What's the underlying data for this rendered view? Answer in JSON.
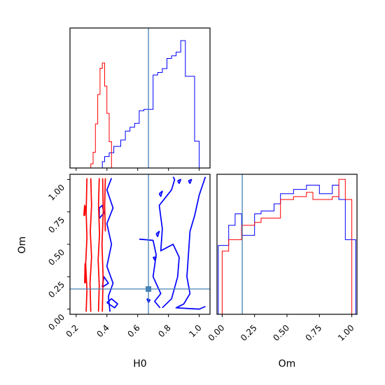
{
  "chart_data": {
    "type": "corner",
    "parameters": [
      "H0",
      "Om"
    ],
    "x_axis_label": "H0",
    "y_axis_label": "Om",
    "om_axis_label": "Om",
    "h0_ticks": [
      {
        "value": 0.2,
        "label": "0.2"
      },
      {
        "value": 0.4,
        "label": "0.4"
      },
      {
        "value": 0.6,
        "label": "0.6"
      },
      {
        "value": 0.8,
        "label": "0.8"
      },
      {
        "value": 1.0,
        "label": "1.0"
      }
    ],
    "om_ticks": [
      {
        "value": 0.0,
        "label": "0.00"
      },
      {
        "value": 0.25,
        "label": "0.25"
      },
      {
        "value": 0.5,
        "label": "0.50"
      },
      {
        "value": 0.75,
        "label": "0.75"
      },
      {
        "value": 1.0,
        "label": "1.00"
      }
    ],
    "h0_range": [
      0.16,
      1.07
    ],
    "om_range": [
      -0.04,
      1.04
    ],
    "truth": {
      "H0": 0.67,
      "Om": 0.155
    },
    "colors": {
      "series_a": "#ff0000",
      "series_b": "#0000ff",
      "truth": "#4682b4",
      "axes": "#000000"
    },
    "h0_histograms": {
      "bin_edges": [
        0.16,
        0.175,
        0.19,
        0.205,
        0.22,
        0.235,
        0.25,
        0.265,
        0.28,
        0.295,
        0.31,
        0.325,
        0.34,
        0.355,
        0.37,
        0.385,
        0.4,
        0.415,
        0.43,
        0.445,
        0.46,
        0.475,
        0.49,
        0.505,
        0.52,
        0.535,
        0.55,
        0.565,
        0.58,
        0.595,
        0.61,
        0.625,
        0.64,
        0.655,
        0.67,
        0.685,
        0.7,
        0.715,
        0.73,
        0.745,
        0.76,
        0.775,
        0.79,
        0.805,
        0.82,
        0.835,
        0.85,
        0.865,
        0.88,
        0.895,
        0.91,
        0.925,
        0.94,
        0.955,
        0.97,
        0.985,
        1.0,
        1.015,
        1.03,
        1.045,
        1.06
      ],
      "red": [
        0,
        0,
        0,
        0,
        0,
        0,
        0,
        0,
        0,
        0.04,
        0.15,
        0.42,
        0.7,
        0.95,
        1.0,
        0.78,
        0.52,
        0.25,
        0,
        0,
        0,
        0,
        0,
        0,
        0,
        0,
        0,
        0,
        0,
        0,
        0,
        0,
        0,
        0,
        0,
        0,
        0,
        0,
        0,
        0,
        0,
        0,
        0,
        0,
        0,
        0,
        0,
        0,
        0,
        0,
        0,
        0,
        0,
        0,
        0,
        0,
        0,
        0,
        0,
        0
      ],
      "blue": [
        0,
        0,
        0,
        0,
        0,
        0,
        0,
        0,
        0,
        0,
        0,
        0,
        0,
        0,
        0.05,
        0.09,
        0.09,
        0.12,
        0.12,
        0.17,
        0.17,
        0.17,
        0.22,
        0.22,
        0.29,
        0.29,
        0.32,
        0.32,
        0.35,
        0.35,
        0.45,
        0.45,
        0.46,
        0.46,
        0.46,
        0.46,
        0.73,
        0.73,
        0.75,
        0.75,
        0.78,
        0.78,
        0.86,
        0.86,
        0.88,
        0.88,
        0.91,
        0.91,
        1.0,
        1.0,
        0.72,
        0.72,
        0.72,
        0.72,
        0.21,
        0.21,
        0,
        0,
        0,
        0
      ]
    },
    "om_histograms": {
      "bin_edges": [
        -0.03,
        0.0,
        0.05,
        0.1,
        0.15,
        0.2,
        0.25,
        0.3,
        0.35,
        0.4,
        0.45,
        0.5,
        0.55,
        0.6,
        0.65,
        0.7,
        0.75,
        0.8,
        0.85,
        0.9,
        0.95,
        1.0,
        1.03
      ],
      "red": [
        0.0,
        0.44,
        0.52,
        0.52,
        0.62,
        0.62,
        0.64,
        0.67,
        0.67,
        0.67,
        0.8,
        0.8,
        0.82,
        0.82,
        0.85,
        0.8,
        0.8,
        0.8,
        0.82,
        0.94,
        0.8,
        0.0
      ],
      "blue": [
        0.48,
        0.48,
        0.62,
        0.7,
        0.55,
        0.55,
        0.7,
        0.72,
        0.72,
        0.77,
        0.84,
        0.84,
        0.87,
        0.87,
        0.9,
        0.9,
        0.84,
        0.84,
        0.9,
        0.8,
        0.52,
        0.52
      ]
    },
    "contours": {
      "red": [
        [
          [
            0.265,
            -0.02
          ],
          [
            0.27,
            0.15
          ],
          [
            0.262,
            0.35
          ],
          [
            0.27,
            0.55
          ],
          [
            0.265,
            0.75
          ],
          [
            0.27,
            1.01
          ]
        ],
        [
          [
            0.295,
            -0.02
          ],
          [
            0.29,
            0.2
          ],
          [
            0.3,
            0.4
          ],
          [
            0.292,
            0.6
          ],
          [
            0.3,
            0.8
          ],
          [
            0.295,
            1.01
          ]
        ],
        [
          [
            0.345,
            -0.02
          ],
          [
            0.35,
            0.18
          ],
          [
            0.343,
            0.38
          ],
          [
            0.352,
            0.58
          ],
          [
            0.345,
            0.8
          ],
          [
            0.35,
            1.01
          ]
        ],
        [
          [
            0.37,
            -0.02
          ],
          [
            0.375,
            0.25
          ],
          [
            0.368,
            0.5
          ],
          [
            0.376,
            0.75
          ],
          [
            0.372,
            1.01
          ]
        ],
        [
          [
            0.39,
            0.6
          ],
          [
            0.385,
            0.8
          ],
          [
            0.39,
            1.01
          ]
        ],
        [
          [
            0.25,
            0.72
          ],
          [
            0.255,
            0.8
          ],
          [
            0.26,
            0.78
          ],
          [
            0.255,
            0.72
          ]
        ],
        [
          [
            0.255,
            0.2
          ],
          [
            0.258,
            0.35
          ],
          [
            0.262,
            0.3
          ],
          [
            0.26,
            0.2
          ]
        ]
      ],
      "blue": [
        [
          [
            0.42,
            -0.02
          ],
          [
            0.41,
            0.1
          ],
          [
            0.44,
            0.2
          ],
          [
            0.4,
            0.33
          ],
          [
            0.43,
            0.5
          ],
          [
            0.4,
            0.66
          ],
          [
            0.44,
            0.78
          ],
          [
            0.4,
            0.92
          ],
          [
            0.43,
            1.01
          ]
        ],
        [
          [
            0.4,
            0.05
          ],
          [
            0.43,
            0.08
          ],
          [
            0.47,
            0.04
          ],
          [
            0.45,
            0.01
          ],
          [
            0.4,
            0.05
          ]
        ],
        [
          [
            0.37,
            0.17
          ],
          [
            0.41,
            0.2
          ],
          [
            0.38,
            0.25
          ],
          [
            0.37,
            0.17
          ]
        ],
        [
          [
            0.35,
            0.7
          ],
          [
            0.38,
            0.74
          ],
          [
            0.37,
            0.8
          ],
          [
            0.35,
            0.78
          ],
          [
            0.35,
            0.7
          ]
        ],
        [
          [
            0.61,
            0.54
          ],
          [
            0.7,
            0.53
          ],
          [
            0.72,
            0.42
          ],
          [
            0.7,
            0.25
          ],
          [
            0.75,
            0.12
          ],
          [
            0.71,
            0.06
          ],
          [
            0.745,
            0.01
          ]
        ],
        [
          [
            0.76,
            0.01
          ],
          [
            0.82,
            0.08
          ],
          [
            0.86,
            0.25
          ],
          [
            0.87,
            0.4
          ],
          [
            0.83,
            0.5
          ],
          [
            0.75,
            0.45
          ],
          [
            0.76,
            0.62
          ],
          [
            0.74,
            0.8
          ],
          [
            0.78,
            0.86
          ],
          [
            0.82,
            0.92
          ],
          [
            0.84,
            1.0
          ],
          [
            0.83,
            1.02
          ]
        ],
        [
          [
            1.04,
            1.02
          ],
          [
            1.0,
            0.88
          ],
          [
            0.97,
            0.72
          ],
          [
            0.94,
            0.6
          ],
          [
            0.93,
            0.42
          ],
          [
            0.92,
            0.25
          ],
          [
            0.94,
            0.12
          ],
          [
            0.9,
            0.04
          ],
          [
            0.85,
            0.01
          ],
          [
            1.0,
            0.0
          ],
          [
            1.04,
            0.02
          ]
        ],
        [
          [
            0.7,
            0.4
          ],
          [
            0.72,
            0.4
          ],
          [
            0.71,
            0.38
          ],
          [
            0.7,
            0.4
          ]
        ],
        [
          [
            0.72,
            0.58
          ],
          [
            0.74,
            0.6
          ],
          [
            0.73,
            0.56
          ],
          [
            0.72,
            0.58
          ]
        ],
        [
          [
            0.66,
            0.08
          ],
          [
            0.68,
            0.07
          ],
          [
            0.67,
            0.05
          ],
          [
            0.66,
            0.08
          ]
        ],
        [
          [
            0.74,
            0.89
          ],
          [
            0.76,
            0.91
          ],
          [
            0.75,
            0.87
          ],
          [
            0.74,
            0.89
          ]
        ],
        [
          [
            0.86,
            0.99
          ],
          [
            0.88,
            1.0
          ],
          [
            0.87,
            0.97
          ],
          [
            0.86,
            0.99
          ]
        ],
        [
          [
            0.93,
            0.99
          ],
          [
            0.95,
            1.0
          ],
          [
            0.94,
            0.97
          ],
          [
            0.93,
            0.99
          ]
        ]
      ]
    }
  }
}
